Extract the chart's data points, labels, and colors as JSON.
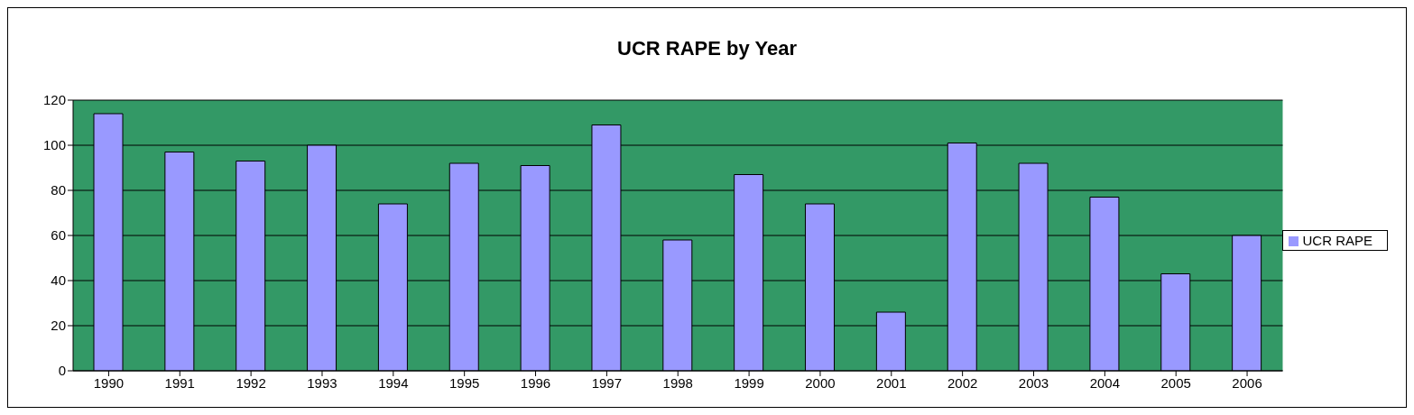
{
  "chart_data": {
    "type": "bar",
    "title": "UCR RAPE by Year",
    "categories": [
      "1990",
      "1991",
      "1992",
      "1993",
      "1994",
      "1995",
      "1996",
      "1997",
      "1998",
      "1999",
      "2000",
      "2001",
      "2002",
      "2003",
      "2004",
      "2005",
      "2006"
    ],
    "series": [
      {
        "name": "UCR RAPE",
        "color": "#9999ff",
        "values": [
          114,
          97,
          93,
          100,
          74,
          92,
          91,
          109,
          58,
          87,
          74,
          26,
          101,
          92,
          77,
          43,
          60
        ]
      }
    ],
    "ylim": [
      0,
      120
    ],
    "yticks": [
      0,
      20,
      40,
      60,
      80,
      100,
      120
    ],
    "grid": "y",
    "legend": "right"
  }
}
